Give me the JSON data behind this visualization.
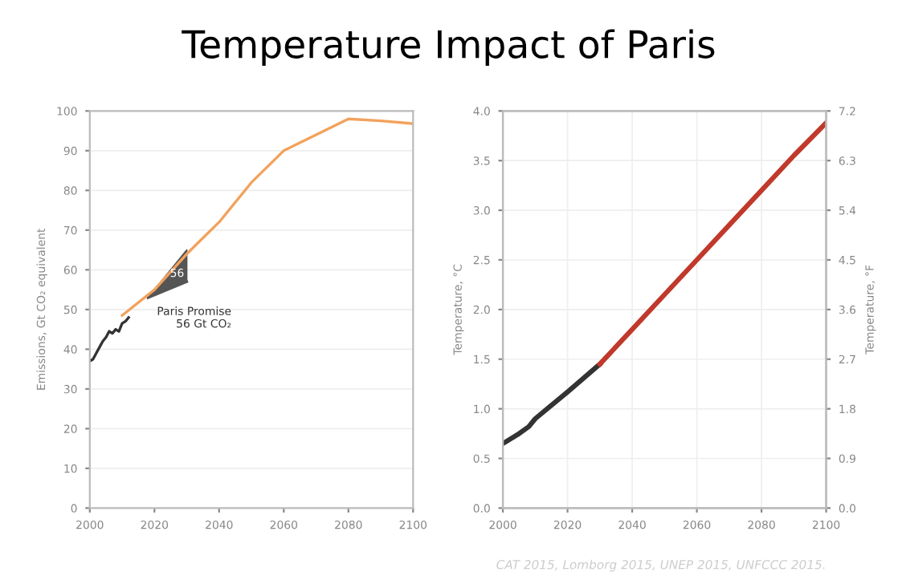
{
  "chart_data": [
    {
      "type": "line",
      "title": "Temperature Impact of Paris",
      "ylabel": "Emissions, Gt CO₂ equivalent",
      "xlim": [
        2000,
        2100
      ],
      "xticks": [
        2000,
        2020,
        2040,
        2060,
        2080,
        2100
      ],
      "ylim": [
        0,
        100
      ],
      "yticks": [
        0,
        10,
        20,
        30,
        40,
        50,
        60,
        70,
        80,
        90,
        100
      ],
      "grid": "y",
      "series": [
        {
          "color": "#555555",
          "x": [
            2018,
            2030
          ],
          "values": [
            53,
            57
          ],
          "lower": [
            53,
            57
          ],
          "upper": [
            53,
            65
          ]
        },
        {
          "color": "#333333",
          "x": [
            2000,
            2001,
            2002,
            2003,
            2004,
            2005,
            2006,
            2007,
            2008,
            2009,
            2010,
            2011,
            2012
          ],
          "values": [
            37,
            37.5,
            39,
            40.5,
            42,
            43,
            44.5,
            44,
            45,
            44.5,
            46.5,
            47,
            48
          ]
        },
        {
          "color": "#f2a25c",
          "x": [
            2010,
            2020,
            2030,
            2040,
            2050,
            2060,
            2070,
            2080,
            2090,
            2100
          ],
          "values": [
            48.5,
            55,
            64,
            72,
            82,
            90,
            94,
            98,
            97.5,
            96.8
          ]
        }
      ],
      "annotations": [
        {
          "text": "56",
          "x": 2027,
          "y": 59
        },
        {
          "text": "Paris Promise\n56 Gt CO₂",
          "x": 2018,
          "y": 53
        }
      ]
    },
    {
      "type": "line",
      "ylabel": "Temperature, °C",
      "y2label": "Temperature, °F",
      "xlim": [
        2000,
        2100
      ],
      "xticks": [
        2000,
        2020,
        2040,
        2060,
        2080,
        2100
      ],
      "ylim": [
        0,
        4
      ],
      "yticks": [
        {
          "value": 0,
          "label": "0.0"
        },
        0.5,
        {
          "value": 1,
          "label": "1.0"
        },
        1.5,
        {
          "value": 2,
          "label": "2.0"
        },
        2.5,
        {
          "value": 3,
          "label": "3.0"
        },
        3.5,
        {
          "value": 4,
          "label": "4.0"
        }
      ],
      "y2lim": [
        0,
        7.2
      ],
      "y2ticks": [
        {
          "value": 0,
          "label": "0.0"
        },
        0.9,
        1.8,
        2.7,
        3.6,
        4.5,
        5.4,
        6.3,
        7.2
      ],
      "grid": true,
      "series": [
        {
          "color": "#333333",
          "x": [
            2000,
            2005,
            2008,
            2010,
            2020,
            2030
          ],
          "values": [
            0.65,
            0.75,
            0.82,
            0.9,
            1.17,
            1.45
          ]
        },
        {
          "color": "#c0392b",
          "x": [
            2030,
            2040,
            2050,
            2060,
            2070,
            2080,
            2090,
            2100
          ],
          "values": [
            1.45,
            1.8,
            2.15,
            2.5,
            2.85,
            3.2,
            3.55,
            3.88
          ]
        }
      ],
      "annotations": [
        "CAT 2015, Lomborg 2015, UNEP 2015, UNFCCC 2015."
      ]
    }
  ]
}
